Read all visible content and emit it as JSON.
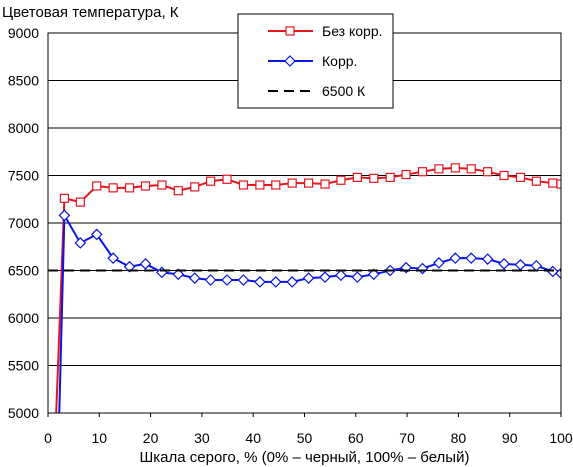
{
  "chart_data": {
    "type": "line",
    "title": "",
    "ylabel": "Цветовая температура, К",
    "xlabel": "Шкала серого, % (0% – черный, 100% – белый)",
    "xlim": [
      0,
      100
    ],
    "ylim": [
      5000,
      9000
    ],
    "xticks": [
      0,
      10,
      20,
      30,
      40,
      50,
      60,
      70,
      80,
      90,
      100
    ],
    "yticks": [
      5000,
      5500,
      6000,
      6500,
      7000,
      7500,
      8000,
      8500,
      9000
    ],
    "grid": "horizontal",
    "legend_position": "top-center",
    "series": [
      {
        "name": "Без корр.",
        "color": "#e8141e",
        "marker": "square",
        "dashed": false,
        "x": [
          1.6,
          3.2,
          6.3,
          9.5,
          12.7,
          15.9,
          19.0,
          22.2,
          25.4,
          28.6,
          31.7,
          34.9,
          38.1,
          41.3,
          44.4,
          47.6,
          50.8,
          54.0,
          57.1,
          60.3,
          63.5,
          66.7,
          69.8,
          73.0,
          76.2,
          79.4,
          82.5,
          85.7,
          88.9,
          92.1,
          95.2,
          98.4,
          100
        ],
        "y": [
          4950,
          7260,
          7220,
          7390,
          7370,
          7370,
          7390,
          7400,
          7340,
          7380,
          7440,
          7460,
          7400,
          7400,
          7400,
          7420,
          7420,
          7410,
          7450,
          7480,
          7470,
          7480,
          7510,
          7540,
          7570,
          7580,
          7570,
          7540,
          7500,
          7480,
          7440,
          7420,
          7410
        ]
      },
      {
        "name": "Корр.",
        "color": "#0a14e6",
        "marker": "diamond",
        "dashed": false,
        "x": [
          2.2,
          3.2,
          6.3,
          9.5,
          12.7,
          15.9,
          19.0,
          22.2,
          25.4,
          28.6,
          31.7,
          34.9,
          38.1,
          41.3,
          44.4,
          47.6,
          50.8,
          54.0,
          57.1,
          60.3,
          63.5,
          66.7,
          69.8,
          73.0,
          76.2,
          79.4,
          82.5,
          85.7,
          88.9,
          92.1,
          95.2,
          98.4,
          100
        ],
        "y": [
          4950,
          7080,
          6790,
          6880,
          6630,
          6540,
          6570,
          6480,
          6460,
          6420,
          6400,
          6400,
          6400,
          6380,
          6380,
          6380,
          6420,
          6430,
          6450,
          6430,
          6460,
          6500,
          6530,
          6520,
          6580,
          6630,
          6630,
          6620,
          6570,
          6560,
          6550,
          6490,
          6470
        ]
      },
      {
        "name": "6500 К",
        "color": "#000000",
        "marker": "none",
        "dashed": true,
        "x": [
          0,
          100
        ],
        "y": [
          6500,
          6500
        ]
      }
    ]
  }
}
